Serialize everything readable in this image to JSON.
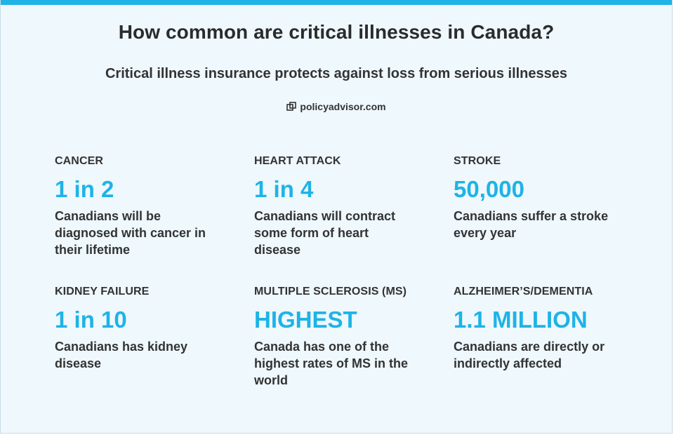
{
  "header": {
    "title": "How common are critical illnesses in Canada?",
    "subtitle": "Critical illness insurance protects against loss from serious illnesses",
    "brand": "policyadvisor.com"
  },
  "colors": {
    "accent": "#1fb3e6",
    "background": "#eef8fd",
    "text": "#333333"
  },
  "stats": [
    {
      "label": "CANCER",
      "value": "1 in 2",
      "description": "Canadians will be diagnosed with cancer in their lifetime"
    },
    {
      "label": "HEART ATTACK",
      "value": "1 in 4",
      "description": "Canadians will contract some form of heart disease"
    },
    {
      "label": "STROKE",
      "value": "50,000",
      "description": "Canadians suffer a stroke every year"
    },
    {
      "label": "KIDNEY FAILURE",
      "value": "1 in 10",
      "description": "Canadians has kidney disease"
    },
    {
      "label": "MULTIPLE SCLEROSIS (MS)",
      "value": "HIGHEST",
      "description": "Canada has one of the highest rates of MS in the world"
    },
    {
      "label": "ALZHEIMER’S/DEMENTIA",
      "value": "1.1 MILLION",
      "description": "Canadians are directly or indirectly affected"
    }
  ]
}
